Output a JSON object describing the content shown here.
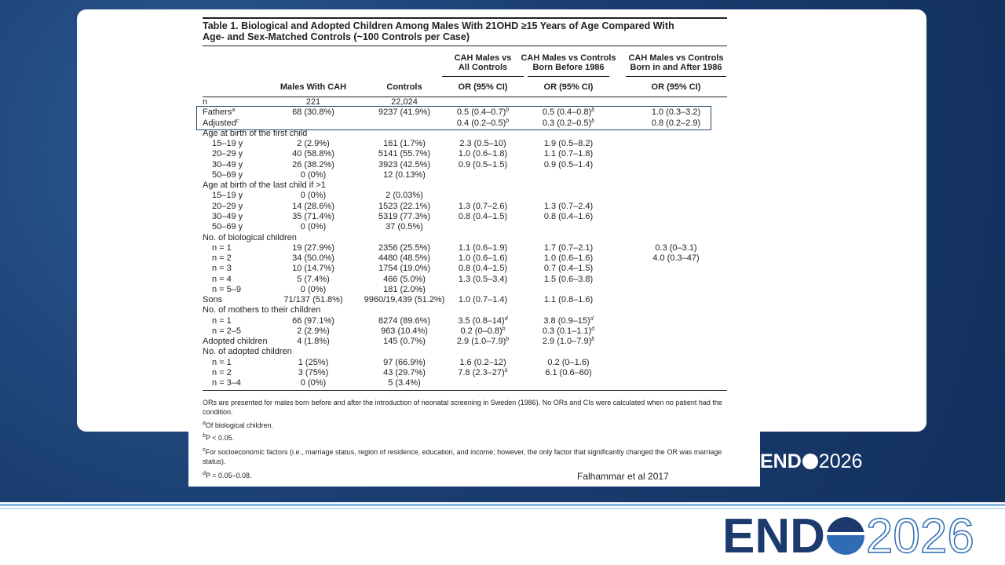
{
  "title": {
    "lines": [
      "Table 1.   Biological and Adopted Children Among Males With 21OHD ≥15 Years of Age Compared With",
      "Age- and Sex-Matched Controls (~100 Controls per Case)"
    ]
  },
  "header": {
    "groups": [
      null,
      null,
      null,
      [
        "CAH Males vs",
        "All Controls"
      ],
      [
        "CAH Males vs Controls",
        "Born Before 1986"
      ],
      [
        "CAH Males vs Controls",
        "Born in and After 1986"
      ]
    ],
    "columns": [
      null,
      "Males With CAH",
      "Controls",
      "OR (95% CI)",
      "OR (95% CI)",
      "OR (95% CI)"
    ]
  },
  "body": [
    [
      "n",
      "221",
      "22,024",
      null,
      null,
      null
    ],
    [
      {
        "text": "Fathers",
        "sup": "a"
      },
      "68 (30.8%)",
      "9237 (41.9%)",
      {
        "text": "0.5 (0.4–0.7)",
        "sup": "b"
      },
      {
        "text": "0.5 (0.4–0.8)",
        "sup": "b"
      },
      "1.0 (0.3–3.2)"
    ],
    [
      {
        "text": "Adjusted",
        "sup": "c"
      },
      null,
      null,
      {
        "text": "0.4 (0.2–0.5)",
        "sup": "b"
      },
      {
        "text": "0.3 (0.2–0.5)",
        "sup": "b"
      },
      "0.8 (0.2–2.9)"
    ],
    {
      "label": "Age at birth of the first child",
      "rows": [
        [
          "15–19 y",
          "2 (2.9%)",
          "161 (1.7%)",
          "2.3 (0.5–10)",
          "1.9 (0.5–8.2)",
          null
        ],
        [
          "20–29 y",
          "40 (58.8%)",
          "5141 (55.7%)",
          "1.0 (0.6–1.8)",
          "1.1 (0.7–1.8)",
          null
        ],
        [
          "30–49 y",
          "26 (38.2%)",
          "3923 (42.5%)",
          "0.9 (0.5–1.5)",
          "0.9 (0.5–1.4)",
          null
        ],
        [
          "50–69 y",
          "0 (0%)",
          "12 (0.13%)",
          null,
          null,
          null
        ]
      ]
    },
    {
      "label": "Age at birth of the last child if >1",
      "rows": [
        [
          "15–19 y",
          "0 (0%)",
          "2 (0.03%)",
          null,
          null,
          null
        ],
        [
          "20–29 y",
          "14 (28.6%)",
          "1523 (22.1%)",
          "1.3 (0.7–2.6)",
          "1.3 (0.7–2.4)",
          null
        ],
        [
          "30–49 y",
          "35 (71.4%)",
          "5319 (77.3%)",
          "0.8 (0.4–1.5)",
          "0.8 (0.4–1.6)",
          null
        ],
        [
          "50–69 y",
          "0 (0%)",
          "37 (0.5%)",
          null,
          null,
          null
        ]
      ]
    },
    {
      "label": "No. of biological children",
      "rows": [
        [
          "n = 1",
          "19 (27.9%)",
          "2356 (25.5%)",
          "1.1 (0.6–1.9)",
          "1.7 (0.7–2.1)",
          "0.3 (0–3.1)"
        ],
        [
          "n = 2",
          "34 (50.0%)",
          "4480 (48.5%)",
          "1.0 (0.6–1.6)",
          "1.0 (0.6–1.6)",
          "4.0 (0.3–47)"
        ],
        [
          "n = 3",
          "10 (14.7%)",
          "1754 (19.0%)",
          "0.8 (0.4–1.5)",
          "0.7 (0.4–1.5)",
          null
        ],
        [
          "n = 4",
          "5 (7.4%)",
          "466 (5.0%)",
          "1.3 (0.5–3.4)",
          "1.5 (0.6–3.8)",
          null
        ],
        [
          "n = 5–9",
          "0 (0%)",
          "181 (2.0%)",
          null,
          null,
          null
        ]
      ]
    },
    [
      "Sons",
      "71/137 (51.8%)",
      "9960/19,439 (51.2%)",
      "1.0 (0.7–1.4)",
      "1.1 (0.8–1.6)",
      null
    ],
    {
      "label": "No. of mothers to their children",
      "rows": [
        [
          "n = 1",
          "66 (97.1%)",
          "8274 (89.6%)",
          {
            "text": "3.5 (0.8–14)",
            "sup": "d"
          },
          {
            "text": "3.8 (0.9–15)",
            "sup": "d"
          },
          null
        ],
        [
          "n = 2–5",
          "2 (2.9%)",
          "963 (10.4%)",
          {
            "text": "0.2 (0–0.8)",
            "sup": "b"
          },
          {
            "text": "0.3 (0.1–1.1)",
            "sup": "d"
          },
          null
        ]
      ]
    },
    [
      "Adopted children",
      "4 (1.8%)",
      "145 (0.7%)",
      {
        "text": "2.9 (1.0–7.9)",
        "sup": "b"
      },
      {
        "text": "2.9 (1.0–7.9)",
        "sup": "b"
      },
      null
    ],
    {
      "label": "No. of adopted children",
      "rows": [
        [
          "n = 1",
          "1 (25%)",
          "97 (66.9%)",
          "1.6 (0.2–12)",
          "0.2 (0–1.6)",
          null
        ],
        [
          "n = 2",
          "3 (75%)",
          "43 (29.7%)",
          {
            "text": "7.8 (2.3–27)",
            "sup": "b"
          },
          "6.1 (0.6–60)",
          null
        ],
        [
          "n = 3–4",
          "0 (0%)",
          "5 (3.4%)",
          null,
          null,
          null
        ]
      ]
    }
  ],
  "note": "ORs are presented for males born before and after the introduction of neonatal screening in Sweden (1986). No ORs and CIs were calculated when no patient had the condition.",
  "footnotes": [
    {
      "marker": "a",
      "text": "Of biological children."
    },
    {
      "marker": "b",
      "text": "P < 0.05."
    },
    {
      "marker": "c",
      "text": "For socioeconomic factors (i.e., marriage status, region of residence, education, and income; however, the only factor that significantly changed the OR was marriage status)."
    },
    {
      "marker": "d",
      "text": "P = 0.05–0.08."
    }
  ],
  "citation": "Falhammar et al 2017",
  "logo": {
    "left": "END",
    "right": "2026"
  }
}
